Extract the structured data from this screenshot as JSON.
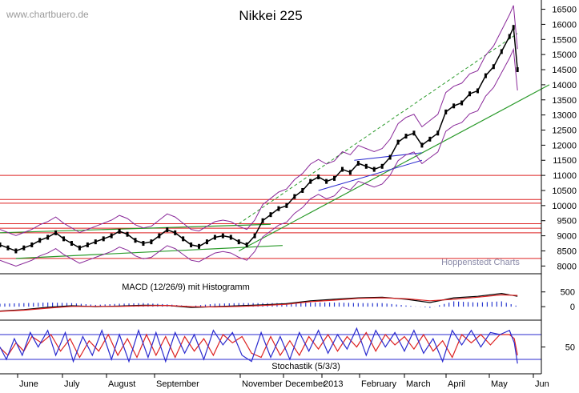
{
  "watermark": "www.chartbuero.de",
  "provider": "Hoppenstedt Charts",
  "chart_data": [
    {
      "type": "line",
      "title": "Nikkei 225",
      "y_ticks": [
        8000,
        8500,
        9000,
        9500,
        10000,
        10500,
        11000,
        11500,
        12000,
        12500,
        13000,
        13500,
        14000,
        14500,
        15000,
        15500,
        16000,
        16500
      ],
      "ylim": [
        7850,
        16700
      ],
      "x_labels": [
        "June",
        "July",
        "August",
        "September",
        "November",
        "December",
        "2013",
        "February",
        "March",
        "April",
        "May",
        "Jun"
      ],
      "horizontal_levels": [
        8250,
        9100,
        9250,
        9400,
        10080,
        10200,
        11000
      ],
      "series": [
        {
          "x": [
            0,
            10,
            20,
            30,
            40,
            50,
            60,
            70,
            80,
            90,
            100,
            110,
            120,
            130,
            140,
            150,
            160,
            170,
            180,
            190,
            200,
            210,
            220,
            230,
            240,
            250,
            260,
            270,
            280,
            290,
            300,
            310,
            320,
            330,
            340,
            350,
            360,
            370,
            380,
            390,
            400,
            410,
            420,
            430,
            440,
            450,
            460,
            470,
            480,
            490,
            500,
            510,
            520,
            530,
            540,
            550,
            560,
            570,
            580,
            590,
            600,
            610,
            620,
            630,
            640,
            645,
            650
          ],
          "values": [
            8700,
            8600,
            8500,
            8600,
            8700,
            8850,
            8950,
            9100,
            8900,
            8750,
            8600,
            8700,
            8800,
            8900,
            9000,
            9150,
            9050,
            8850,
            8750,
            8800,
            9000,
            9200,
            9100,
            8900,
            8700,
            8650,
            8800,
            8950,
            9000,
            8950,
            8800,
            8700,
            9000,
            9500,
            9700,
            9900,
            10000,
            10300,
            10500,
            10800,
            10950,
            10800,
            10900,
            11200,
            11100,
            11400,
            11300,
            11200,
            11300,
            11600,
            12100,
            12300,
            12400,
            12000,
            12200,
            12400,
            13100,
            13300,
            13400,
            13700,
            13800,
            14300,
            14600,
            15100,
            15600,
            15900,
            14500
          ]
        }
      ]
    },
    {
      "type": "line",
      "title": "MACD (12/26/9) mit Histogramm",
      "y_ticks": [
        0,
        500
      ],
      "ylim": [
        -350,
        900
      ],
      "series": [
        {
          "x": [
            0,
            30,
            60,
            90,
            120,
            150,
            180,
            210,
            240,
            270,
            300,
            330,
            360,
            390,
            420,
            450,
            480,
            510,
            540,
            570,
            600,
            630,
            650
          ],
          "values": [
            -150,
            -100,
            -20,
            30,
            0,
            20,
            50,
            40,
            -30,
            0,
            30,
            60,
            100,
            200,
            250,
            300,
            320,
            250,
            140,
            300,
            350,
            450,
            350
          ]
        },
        {
          "x": [
            0,
            30,
            60,
            90,
            120,
            150,
            180,
            210,
            240,
            270,
            300,
            330,
            360,
            390,
            420,
            450,
            480,
            510,
            540,
            570,
            600,
            630,
            650
          ],
          "values": [
            -160,
            -120,
            -50,
            10,
            10,
            10,
            30,
            40,
            0,
            -10,
            10,
            40,
            80,
            170,
            220,
            280,
            300,
            270,
            200,
            250,
            320,
            400,
            380
          ]
        }
      ]
    },
    {
      "type": "line",
      "title": "Stochastik (5/3/3)",
      "y_ticks": [
        50
      ],
      "ylim": [
        -5,
        105
      ],
      "series": [
        {
          "x": [
            0,
            8,
            18,
            28,
            38,
            48,
            60,
            70,
            82,
            92,
            104,
            116,
            128,
            140,
            150,
            162,
            174,
            186,
            196,
            208,
            220,
            232,
            244,
            256,
            268,
            280,
            292,
            304,
            316,
            328,
            340,
            352,
            364,
            376,
            388,
            400,
            412,
            424,
            436,
            448,
            460,
            472,
            484,
            496,
            508,
            520,
            532,
            544,
            556,
            568,
            580,
            592,
            604,
            616,
            628,
            640,
            646,
            650
          ],
          "values": [
            50,
            20,
            70,
            30,
            85,
            50,
            90,
            30,
            85,
            15,
            75,
            30,
            90,
            20,
            80,
            15,
            90,
            25,
            85,
            15,
            85,
            35,
            80,
            20,
            90,
            55,
            85,
            30,
            15,
            85,
            25,
            75,
            20,
            85,
            40,
            90,
            35,
            80,
            45,
            95,
            30,
            90,
            50,
            85,
            40,
            90,
            35,
            70,
            15,
            90,
            55,
            90,
            50,
            85,
            80,
            90,
            60,
            10
          ]
        },
        {
          "x": [
            0,
            10,
            20,
            30,
            40,
            52,
            64,
            76,
            88,
            100,
            112,
            124,
            136,
            148,
            160,
            172,
            184,
            196,
            208,
            220,
            232,
            244,
            256,
            268,
            280,
            292,
            304,
            316,
            328,
            340,
            352,
            364,
            376,
            388,
            400,
            412,
            424,
            436,
            448,
            460,
            472,
            484,
            496,
            508,
            520,
            532,
            544,
            556,
            568,
            580,
            592,
            604,
            616,
            628,
            640,
            646,
            650
          ],
          "values": [
            48,
            30,
            60,
            40,
            75,
            60,
            80,
            40,
            70,
            25,
            65,
            40,
            80,
            30,
            70,
            25,
            80,
            30,
            75,
            25,
            75,
            40,
            70,
            30,
            80,
            60,
            75,
            35,
            25,
            75,
            30,
            65,
            30,
            75,
            45,
            80,
            40,
            75,
            50,
            85,
            40,
            80,
            55,
            75,
            45,
            80,
            40,
            65,
            25,
            80,
            60,
            80,
            55,
            80,
            80,
            70,
            30
          ]
        }
      ]
    }
  ]
}
